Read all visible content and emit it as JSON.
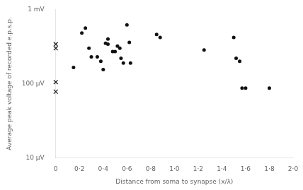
{
  "chart_data": {
    "type": "scatter",
    "xlabel": "Distance from soma to synapse (x/λ)",
    "ylabel": "Average peak voltage of recorded e.p.s.p.",
    "log": "y",
    "grid": false,
    "xlim": [
      0,
      2.0
    ],
    "ylim": [
      10,
      1000
    ],
    "xticks": [
      0,
      {
        "value": 0.2,
        "label": "0·2"
      },
      {
        "value": 0.4,
        "label": "0·4"
      },
      {
        "value": 0.6,
        "label": "0·6"
      },
      {
        "value": 0.8,
        "label": "0·8"
      },
      {
        "value": 1.0,
        "label": "1·0"
      },
      {
        "value": 1.2,
        "label": "1·2"
      },
      {
        "value": 1.4,
        "label": "1·4"
      },
      {
        "value": 1.6,
        "label": "1·6"
      },
      {
        "value": 1.8,
        "label": "1·8"
      },
      {
        "value": 2.0,
        "label": "2·0"
      }
    ],
    "yticks": [
      {
        "value": 10,
        "label": "10 μV"
      },
      {
        "value": 100,
        "label": "100 μV"
      },
      {
        "value": 1000,
        "label": "1 mV"
      }
    ],
    "series": [
      {
        "color": "#111111",
        "marker": "o",
        "x": [
          0.15,
          0.22,
          0.25,
          0.28,
          0.3,
          0.35,
          0.38,
          0.4,
          0.42,
          0.44,
          0.44,
          0.48,
          0.5,
          0.52,
          0.54,
          0.55,
          0.57,
          0.6,
          0.62,
          0.63,
          0.85,
          0.88,
          1.25,
          1.5,
          1.52,
          1.55,
          1.57,
          1.6,
          1.8
        ],
        "values": [
          165,
          480,
          560,
          300,
          230,
          230,
          200,
          155,
          350,
          340,
          400,
          270,
          270,
          320,
          300,
          220,
          190,
          620,
          360,
          190,
          460,
          420,
          285,
          420,
          220,
          200,
          87,
          87,
          87
        ]
      },
      {
        "color": "#111111",
        "marker": "x",
        "x": [
          0,
          0,
          0,
          0
        ],
        "values": [
          340,
          300,
          105,
          78
        ]
      }
    ]
  }
}
